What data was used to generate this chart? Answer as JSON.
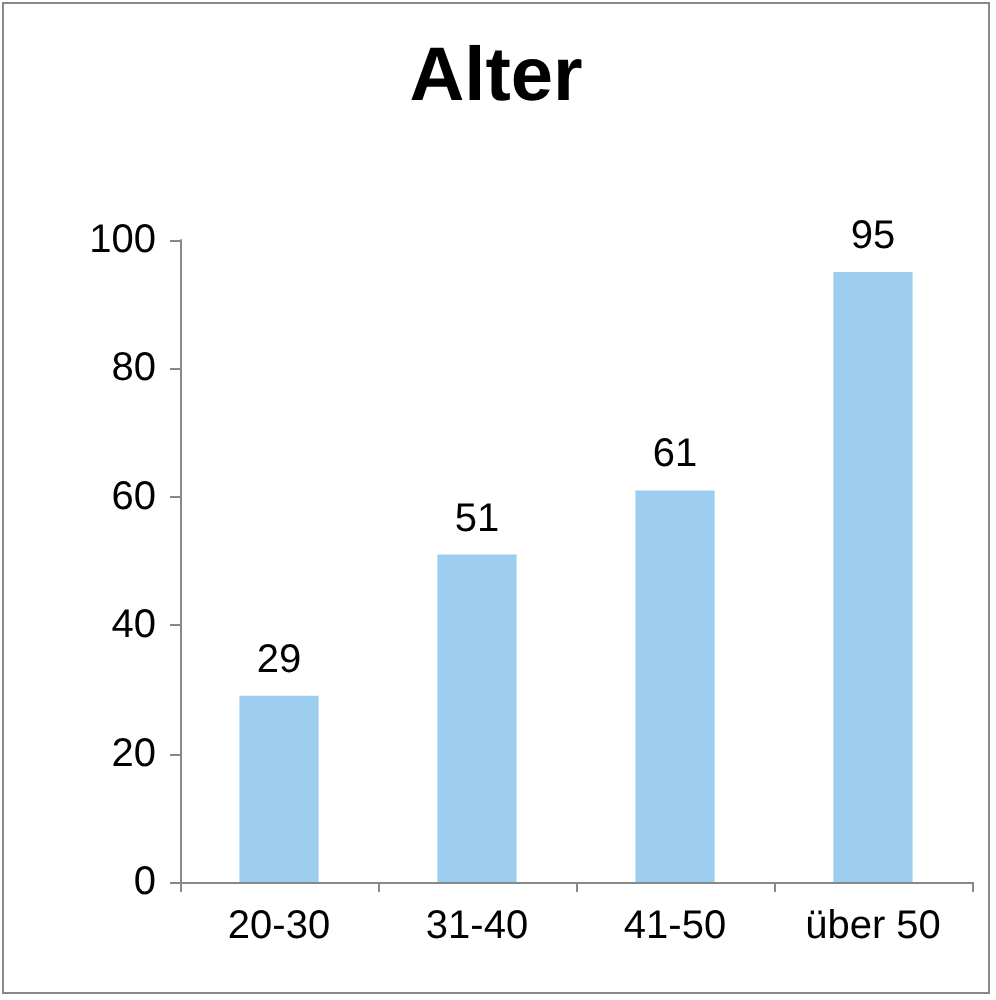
{
  "chart_data": {
    "type": "bar",
    "title": "Alter",
    "categories": [
      "20-30",
      "31-40",
      "41-50",
      "über 50"
    ],
    "values": [
      29,
      51,
      61,
      95
    ],
    "color": "#9dcdee",
    "ylim": [
      0,
      100
    ],
    "yticks": [
      0,
      20,
      40,
      60,
      80,
      100
    ],
    "grid": false,
    "data_labels": true
  }
}
